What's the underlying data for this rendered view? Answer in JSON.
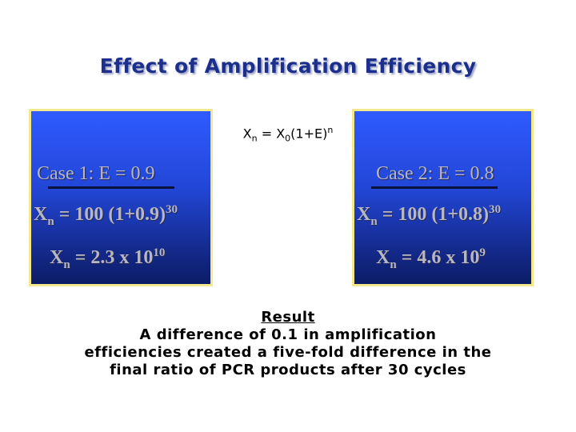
{
  "slide": {
    "title": "Effect of Amplification Efficiency",
    "formula": {
      "x": "X",
      "n": "n",
      "mid": " = X",
      "zero": "0",
      "paren": "(1+E)",
      "exp": "n"
    },
    "case1": {
      "label": "Case 1:  E = 0.9",
      "eq1": {
        "x": "X",
        "n": "n",
        "rest": " = 100 (1+0.9)",
        "exp": "30"
      },
      "eq2": {
        "x": "X",
        "n": "n",
        "rest": " = 2.3 x 10",
        "exp": "10"
      }
    },
    "case2": {
      "label": "Case 2:  E = 0.8",
      "eq1": {
        "x": "X",
        "n": "n",
        "rest": " = 100 (1+0.8)",
        "exp": "30"
      },
      "eq2": {
        "x": "X",
        "n": "n",
        "rest": " = 4.6 x 10",
        "exp": "9"
      }
    },
    "result": {
      "heading": "Result",
      "line1": "A difference of 0.1 in amplification",
      "line2": "efficiencies created a five-fold difference in the",
      "line3": "final ratio of PCR products after 30 cycles"
    }
  },
  "colors": {
    "title": "#1c2f8c",
    "panel_top": "#2f5bff",
    "panel_bottom": "#0c1c66",
    "panel_border": "#f3e88c",
    "panel_text": "#b7b7c2"
  }
}
